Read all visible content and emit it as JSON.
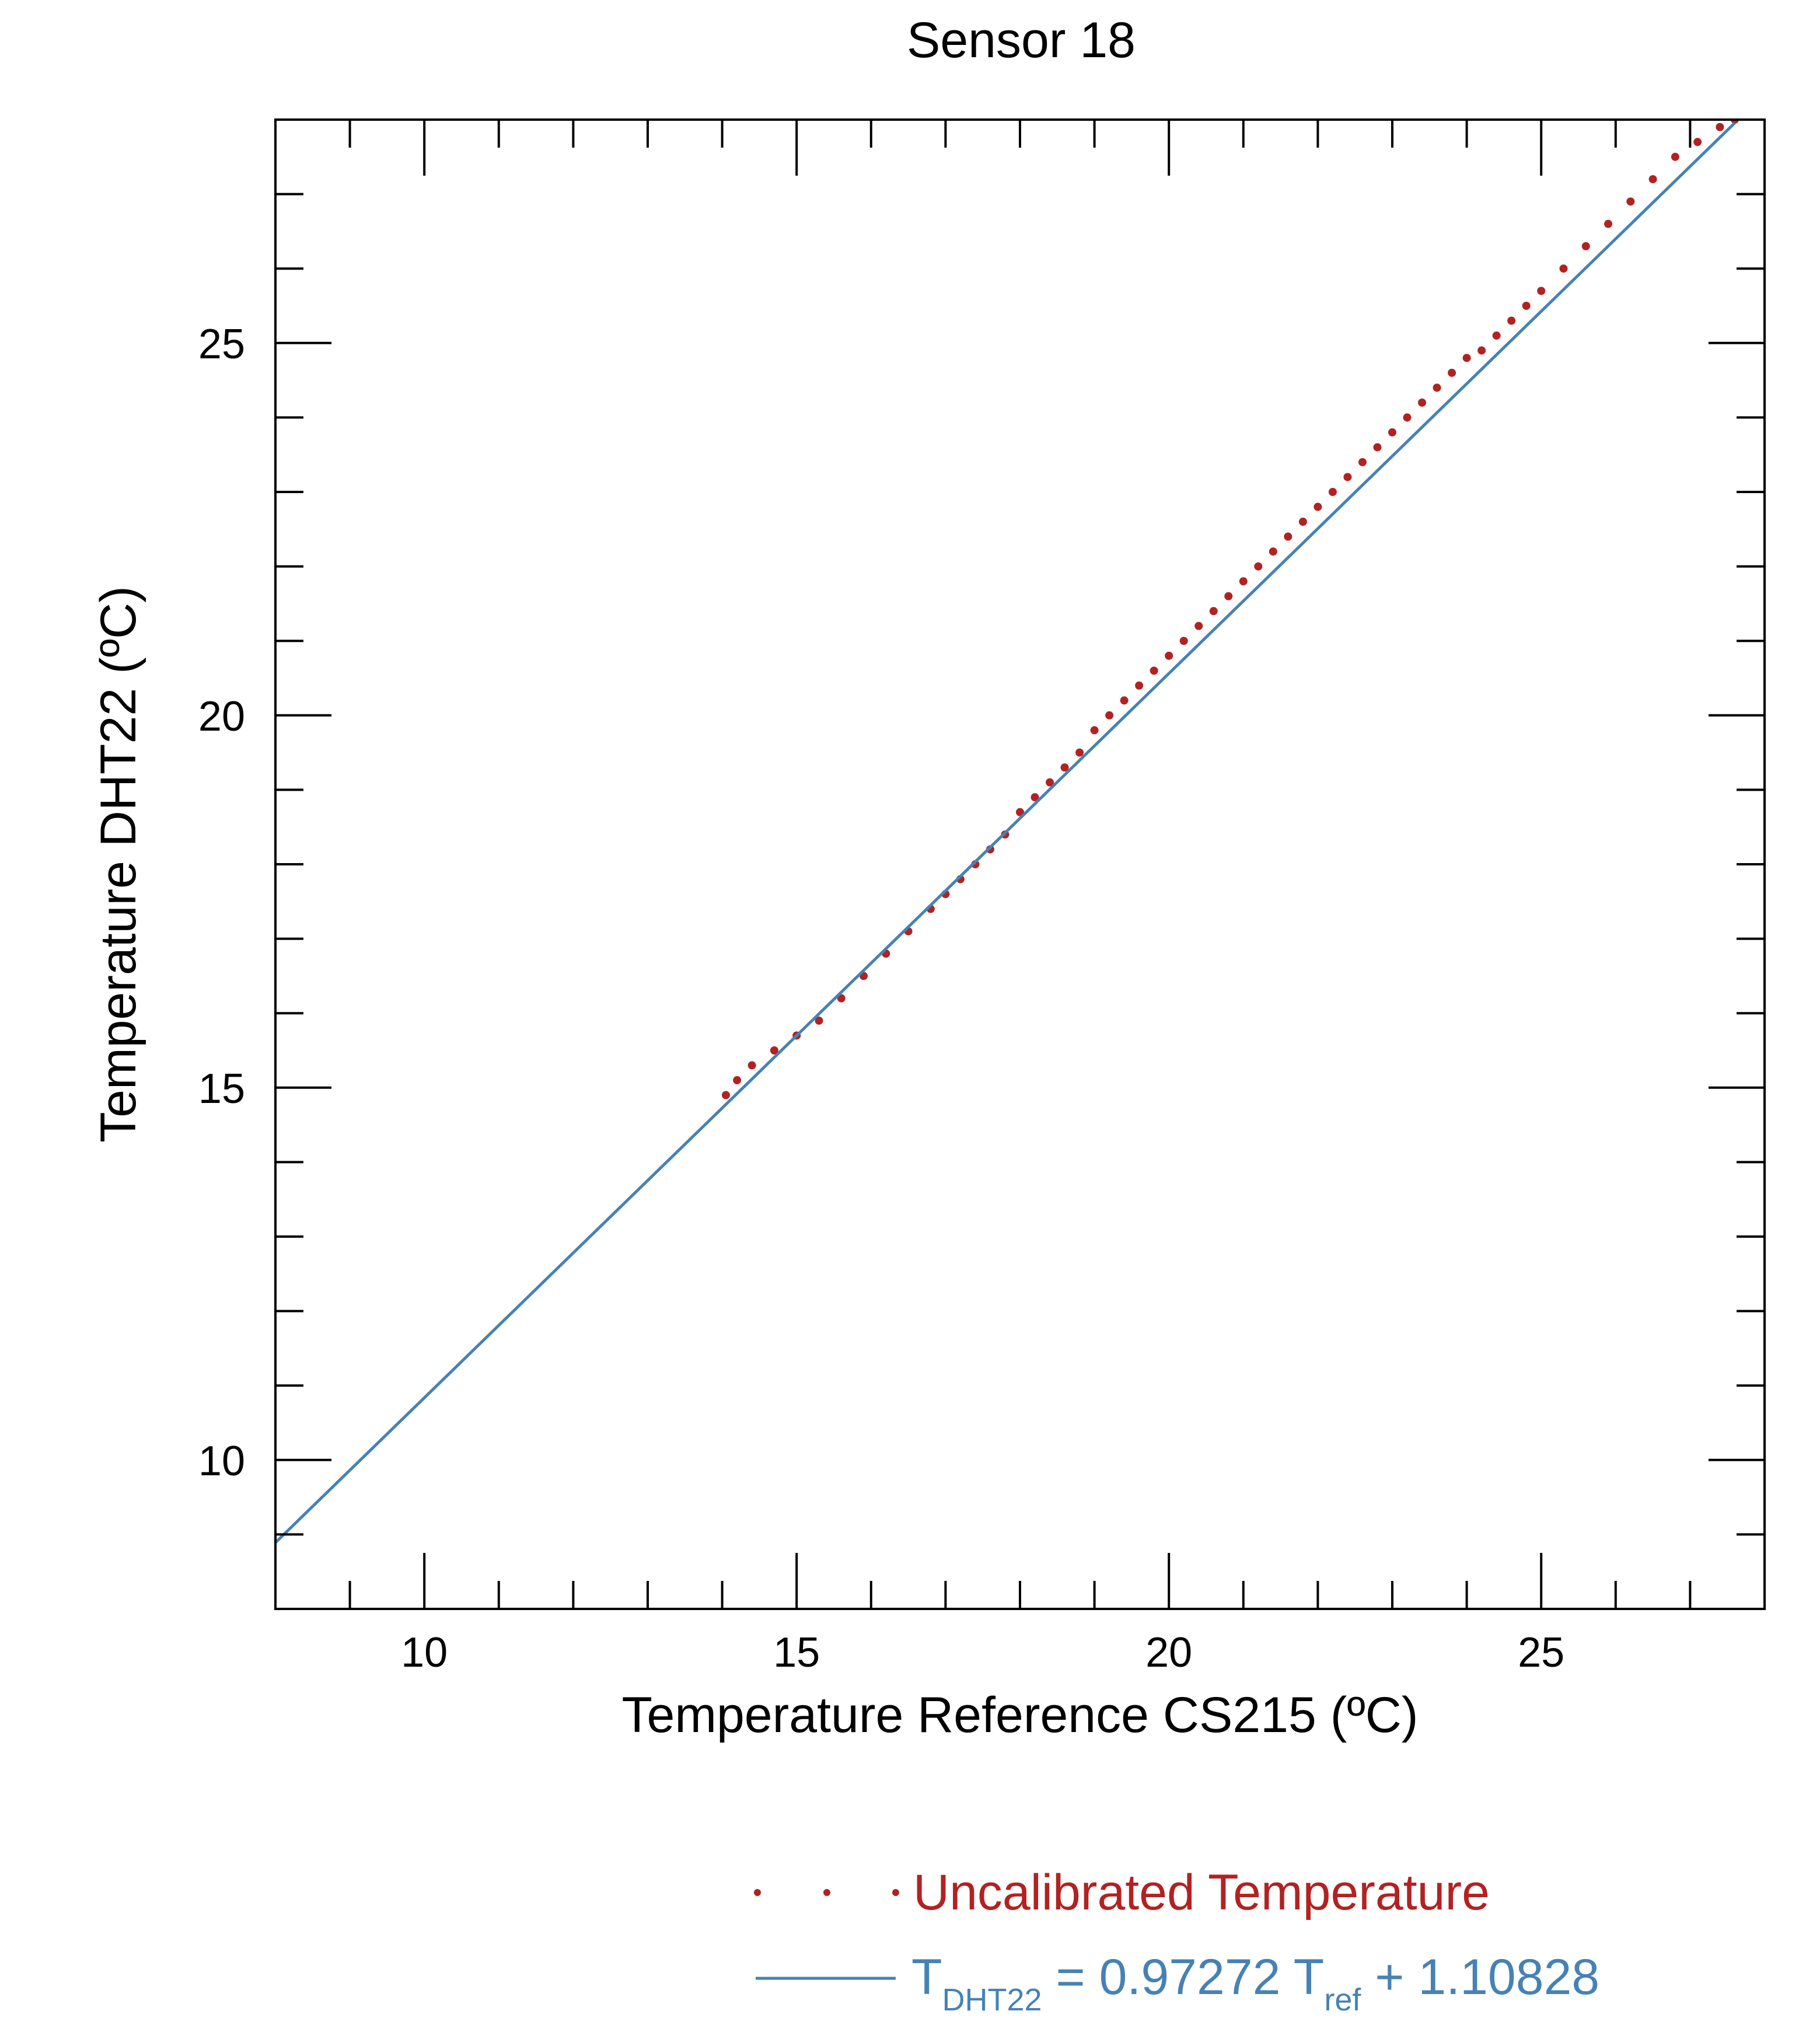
{
  "chart_data": {
    "type": "scatter",
    "title": "Sensor 18",
    "xlabel": "Temperature Reference CS215 (ºC)",
    "ylabel": "Temperature DHT22 (ºC)",
    "xlim": [
      8,
      28
    ],
    "ylim": [
      8,
      28
    ],
    "x_ticks": [
      10,
      15,
      20,
      25
    ],
    "x_tick_labels": [
      "10",
      "15",
      "20",
      "25"
    ],
    "y_ticks": [
      10,
      15,
      20,
      25
    ],
    "y_tick_labels": [
      "10",
      "15",
      "20",
      "25"
    ],
    "grid": false,
    "legend_position": "bottom-right, below plot",
    "series": [
      {
        "name": "Uncalibrated Temperature",
        "kind": "points",
        "color": "#b22222",
        "x": [
          14.05,
          14.2,
          14.4,
          14.7,
          15.0,
          15.3,
          15.6,
          15.9,
          16.2,
          16.5,
          16.8,
          17.0,
          17.2,
          17.4,
          17.6,
          17.8,
          18.0,
          18.2,
          18.4,
          18.6,
          18.8,
          19.0,
          19.2,
          19.4,
          19.6,
          19.8,
          20.0,
          20.2,
          20.4,
          20.6,
          20.8,
          21.0,
          21.2,
          21.4,
          21.6,
          21.8,
          22.0,
          22.2,
          22.4,
          22.6,
          22.8,
          23.0,
          23.2,
          23.4,
          23.6,
          23.8,
          24.0,
          24.2,
          24.4,
          24.6,
          24.8,
          25.0,
          25.3,
          25.6,
          25.9,
          26.2,
          26.5,
          26.8,
          27.1,
          27.4,
          27.6
        ],
        "y": [
          14.9,
          15.1,
          15.3,
          15.5,
          15.7,
          15.9,
          16.2,
          16.5,
          16.8,
          17.1,
          17.4,
          17.6,
          17.8,
          18.0,
          18.2,
          18.4,
          18.7,
          18.9,
          19.1,
          19.3,
          19.5,
          19.8,
          20.0,
          20.2,
          20.4,
          20.6,
          20.8,
          21.0,
          21.2,
          21.4,
          21.6,
          21.8,
          22.0,
          22.2,
          22.4,
          22.6,
          22.8,
          23.0,
          23.2,
          23.4,
          23.6,
          23.8,
          24.0,
          24.2,
          24.4,
          24.6,
          24.8,
          24.9,
          25.1,
          25.3,
          25.5,
          25.7,
          26.0,
          26.3,
          26.6,
          26.9,
          27.2,
          27.5,
          27.7,
          27.9,
          28.0
        ]
      },
      {
        "name": "T_DHT22 = 0.97272 T_ref + 1.10828",
        "kind": "line",
        "color": "#4682b4",
        "slope": 0.97272,
        "intercept": 1.10828,
        "x_range": [
          8,
          27.6
        ]
      }
    ]
  },
  "legend": {
    "points_label": "Uncalibrated Temperature",
    "line_T": "T",
    "line_sub1": "DHT22",
    "line_eq_mid": " =  0.97272 T",
    "line_sub2": "ref",
    "line_eq_end": " + 1.10828",
    "points_color": "#b22222",
    "line_color": "#4682b4"
  }
}
